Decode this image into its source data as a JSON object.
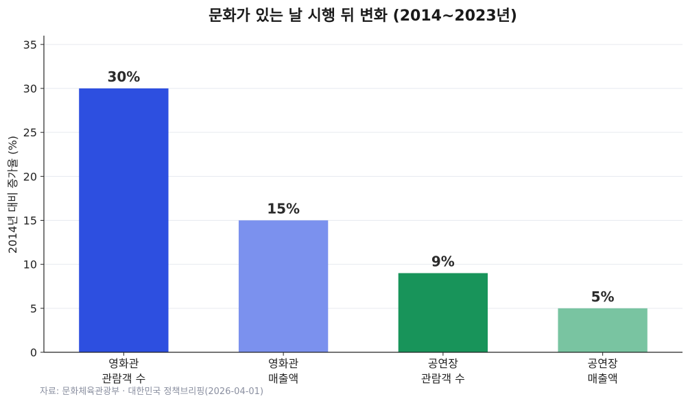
{
  "chart_data": {
    "type": "bar",
    "title": "문화가 있는 날 시행 뒤 변화 (2014~2023년)",
    "ylabel": "2014년 대비 증가율 (%)",
    "xlabel": "",
    "categories": [
      [
        "영화관",
        "관람객 수"
      ],
      [
        "영화관",
        "매출액"
      ],
      [
        "공연장",
        "관람객 수"
      ],
      [
        "공연장",
        "매출액"
      ]
    ],
    "values": [
      30,
      15,
      9,
      5
    ],
    "value_labels": [
      "30%",
      "15%",
      "9%",
      "5%"
    ],
    "colors": [
      "#2d4fe0",
      "#7b91ee",
      "#18945a",
      "#79c4a1"
    ],
    "ylim": [
      0,
      36
    ],
    "yticks": [
      0,
      5,
      10,
      15,
      20,
      25,
      30,
      35
    ],
    "grid": true
  },
  "source": "자료: 문화체육관광부 · 대한민국 정책브리핑(2026-04-01)"
}
